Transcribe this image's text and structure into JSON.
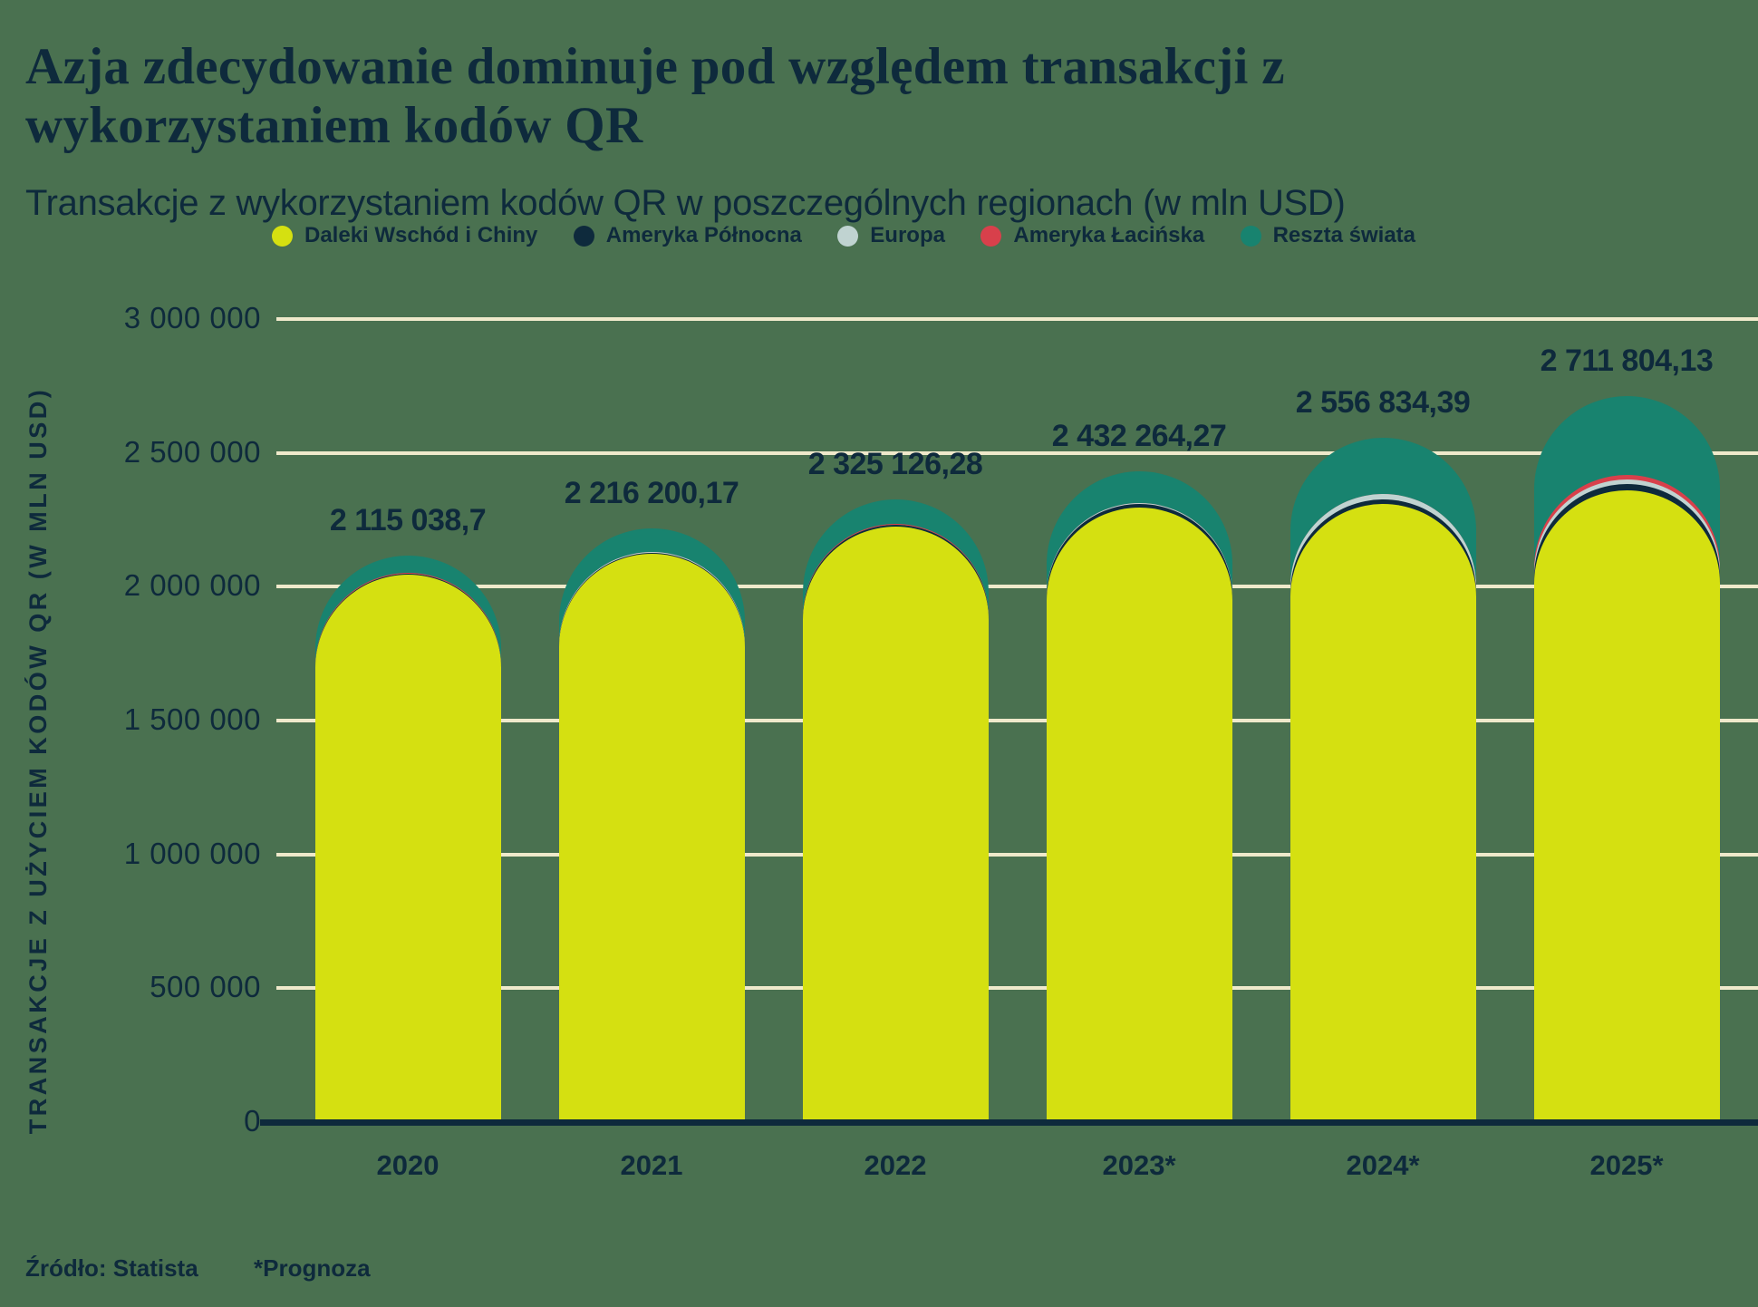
{
  "header": {
    "title": "Azja zdecydowanie dominuje pod względem transakcji z wykorzystaniem kodów QR",
    "subtitle": "Transakcje z wykorzystaniem kodów QR w poszczególnych regionach (w mln USD)"
  },
  "footer": {
    "source": "Źródło: Statista",
    "forecast": "*Prognoza"
  },
  "colors": {
    "background": "#4a7150",
    "text": "#0e2a3c",
    "gridline": "#efe9cb",
    "axis_line": "#0e2a3c"
  },
  "chart_data": {
    "type": "bar",
    "stacked": true,
    "bar_cap": "rounded",
    "grid": true,
    "legend_position": "top",
    "categories": [
      "2020",
      "2021",
      "2022",
      "2023*",
      "2024*",
      "2025*"
    ],
    "series": [
      {
        "name": "Daleki Wschód i Chiny",
        "color": "#d5e011",
        "values": [
          2045000,
          2124000,
          2226000,
          2296000,
          2309000,
          2361000
        ]
      },
      {
        "name": "Ameryka Północna",
        "color": "#0e2a3c",
        "values": [
          2800,
          3200,
          4000,
          12000,
          16000,
          23000
        ]
      },
      {
        "name": "Europa",
        "color": "#c0d3d1",
        "values": [
          1700,
          2000,
          2500,
          3500,
          20000,
          17000
        ]
      },
      {
        "name": "Ameryka Łacińska",
        "color": "#d8404b",
        "values": [
          900,
          1000,
          1300,
          1800,
          3000,
          17000
        ]
      },
      {
        "name": "Reszta świata",
        "color": "#18836f",
        "values": [
          64638.7,
          86000.17,
          91326.28,
          118964.27,
          208834.39,
          293804.13
        ]
      }
    ],
    "totals": [
      2115038.7,
      2216200.17,
      2325126.28,
      2432264.27,
      2556834.39,
      2711804.13
    ],
    "total_labels": [
      "2 115 038,7",
      "2 216 200,17",
      "2 325 126,28",
      "2 432 264,27",
      "2 556 834,39",
      "2 711 804,13"
    ],
    "ylabel": "TRANSAKCJE Z UŻYCIEM KODÓW QR (W MLN USD)",
    "xlabel": "",
    "ylim": [
      0,
      3000000
    ],
    "yticks": [
      {
        "value": 0,
        "label": "0"
      },
      {
        "value": 500000,
        "label": "500 000"
      },
      {
        "value": 1000000,
        "label": "1 000 000"
      },
      {
        "value": 1500000,
        "label": "1 500 000"
      },
      {
        "value": 2000000,
        "label": "2 000 000"
      },
      {
        "value": 2500000,
        "label": "2 500 000"
      },
      {
        "value": 3000000,
        "label": "3 000 000"
      }
    ]
  }
}
